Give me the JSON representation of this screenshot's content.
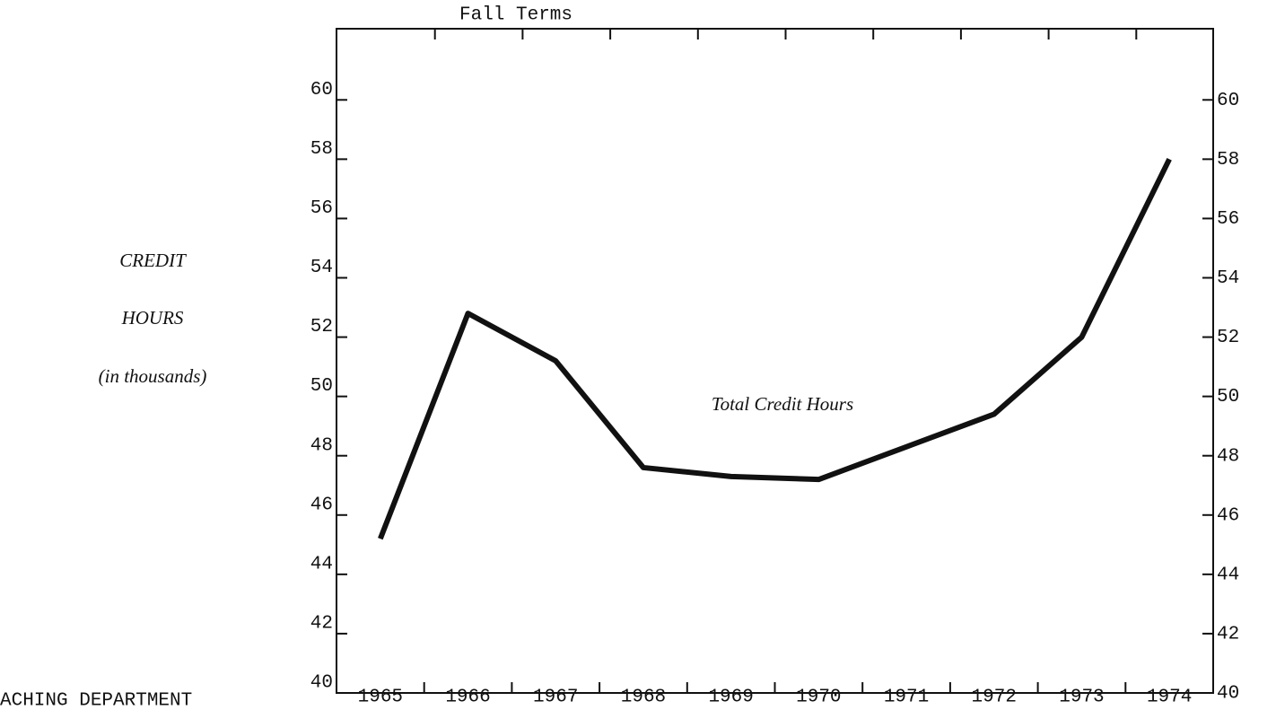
{
  "chart_data": {
    "type": "line",
    "title": "Fall Terms",
    "y_label": [
      "CREDIT",
      "HOURS",
      "(in thousands)"
    ],
    "annotation": "Total Credit Hours",
    "footer": "ACHING DEPARTMENT",
    "categories": [
      "1965",
      "1966",
      "1967",
      "1968",
      "1969",
      "1970",
      "1971",
      "1972",
      "1973",
      "1974"
    ],
    "series": [
      {
        "name": "Total Credit Hours",
        "color": "#111111",
        "values": [
          45.2,
          52.8,
          51.2,
          47.6,
          47.3,
          47.2,
          48.3,
          49.4,
          52,
          58
        ]
      }
    ],
    "ylim": [
      40,
      62.4
    ],
    "yticks": [
      40,
      42,
      44,
      46,
      48,
      50,
      52,
      54,
      56,
      58,
      60
    ],
    "grid": false
  }
}
